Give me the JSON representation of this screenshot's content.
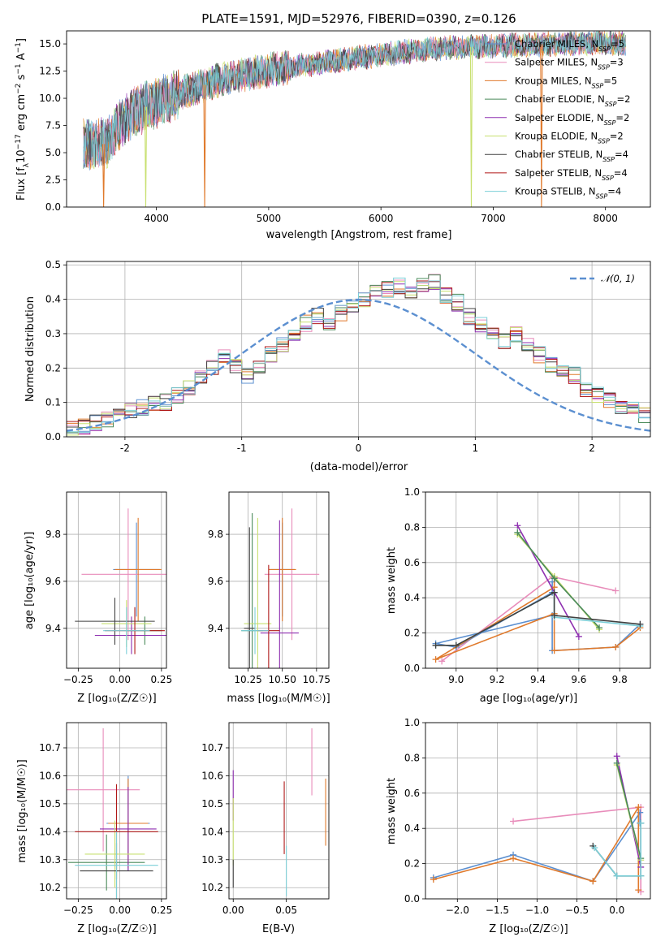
{
  "colors": {
    "Chabrier MILES": "#5b8fd0",
    "Salpeter MILES": "#e88cba",
    "Kroupa MILES": "#e07a2c",
    "Chabrier ELODIE": "#4a8a5a",
    "Salpeter ELODIE": "#8e2fb0",
    "Kroupa ELODIE": "#c8e070",
    "Chabrier STELIB": "#404040",
    "Salpeter STELIB": "#b01818",
    "Kroupa STELIB": "#7ccfd8"
  },
  "chart_data": [
    {
      "id": "spectrum",
      "type": "line",
      "title": "PLATE=1591, MJD=52976, FIBERID=0390, z=0.126",
      "xlabel": "wavelength [Angstrom, rest frame]",
      "ylabel_parts": [
        "Flux [f",
        "λ",
        "10",
        "−17",
        " erg cm",
        "−2",
        " s",
        "−1",
        " A",
        "−1",
        "]"
      ],
      "xlim": [
        3200,
        8400
      ],
      "ylim": [
        0,
        16.2
      ],
      "xticks": [
        4000,
        5000,
        6000,
        7000,
        8000
      ],
      "yticks": [
        0.0,
        2.5,
        5.0,
        7.5,
        10.0,
        12.5,
        15.0
      ],
      "ytick_labels": [
        "0.0",
        "2.5",
        "5.0",
        "7.5",
        "10.0",
        "12.5",
        "15.0"
      ],
      "data_range": [
        3350,
        8180
      ],
      "continuum": [
        [
          3350,
          5.7
        ],
        [
          3550,
          5.8
        ],
        [
          3700,
          8.0
        ],
        [
          3900,
          9.2
        ],
        [
          4100,
          10.0
        ],
        [
          4300,
          10.8
        ],
        [
          4600,
          11.8
        ],
        [
          5000,
          12.6
        ],
        [
          5500,
          13.3
        ],
        [
          6000,
          14.0
        ],
        [
          6500,
          14.6
        ],
        [
          7000,
          14.8
        ],
        [
          7500,
          15.0
        ],
        [
          8000,
          15.1
        ],
        [
          8180,
          15.0
        ]
      ],
      "dropouts": [
        {
          "series": "Kroupa MILES",
          "x": 3530
        },
        {
          "series": "Kroupa ELODIE",
          "x": 3905
        },
        {
          "series": "Kroupa MILES",
          "x": 4430
        },
        {
          "series": "Kroupa ELODIE",
          "x": 6805
        },
        {
          "series": "Kroupa MILES",
          "x": 7430
        }
      ],
      "legend_position": "upper right",
      "legend": [
        {
          "series": "Chabrier MILES",
          "label": "Chabrier MILES, N",
          "sub": "SSP",
          "n": "=5"
        },
        {
          "series": "Salpeter MILES",
          "label": "Salpeter MILES, N",
          "sub": "SSP",
          "n": "=3"
        },
        {
          "series": "Kroupa MILES",
          "label": "Kroupa MILES, N",
          "sub": "SSP",
          "n": "=5"
        },
        {
          "series": "Chabrier ELODIE",
          "label": "Chabrier ELODIE, N",
          "sub": "SSP",
          "n": "=2"
        },
        {
          "series": "Salpeter ELODIE",
          "label": "Salpeter ELODIE, N",
          "sub": "SSP",
          "n": "=2"
        },
        {
          "series": "Kroupa ELODIE",
          "label": "Kroupa ELODIE, N",
          "sub": "SSP",
          "n": "=2"
        },
        {
          "series": "Chabrier STELIB",
          "label": "Chabrier STELIB, N",
          "sub": "SSP",
          "n": "=4"
        },
        {
          "series": "Salpeter STELIB",
          "label": "Salpeter STELIB, N",
          "sub": "SSP",
          "n": "=4"
        },
        {
          "series": "Kroupa STELIB",
          "label": "Kroupa STELIB, N",
          "sub": "SSP",
          "n": "=4"
        }
      ]
    },
    {
      "id": "residuals",
      "type": "bar",
      "xlabel": "(data-model)/error",
      "ylabel": "Normed distribution",
      "xlim": [
        -2.5,
        2.5
      ],
      "ylim": [
        0,
        0.51
      ],
      "xticks": [
        -2,
        -1,
        0,
        1,
        2
      ],
      "yticks": [
        0.0,
        0.1,
        0.2,
        0.3,
        0.4,
        0.5
      ],
      "ytick_labels": [
        "0.0",
        "0.1",
        "0.2",
        "0.3",
        "0.4",
        "0.5"
      ],
      "grid": true,
      "bin_width": 0.1,
      "bin_start": -2.5,
      "base_hist": [
        0.02,
        0.03,
        0.04,
        0.05,
        0.06,
        0.075,
        0.085,
        0.095,
        0.1,
        0.12,
        0.14,
        0.17,
        0.2,
        0.23,
        0.21,
        0.18,
        0.2,
        0.24,
        0.27,
        0.3,
        0.33,
        0.35,
        0.32,
        0.36,
        0.38,
        0.4,
        0.42,
        0.43,
        0.44,
        0.42,
        0.44,
        0.45,
        0.41,
        0.39,
        0.35,
        0.33,
        0.31,
        0.28,
        0.3,
        0.27,
        0.24,
        0.21,
        0.2,
        0.18,
        0.14,
        0.12,
        0.11,
        0.09,
        0.08,
        0.065
      ],
      "normal_label": "𝒩(0, 1)",
      "normal_color": "#5b8fd0",
      "legend_position": "upper right"
    },
    {
      "id": "age-vs-Z",
      "type": "scatter",
      "xlabel": "Z [log₁₀(Z/Z☉)]",
      "ylabel": "age  [log₁₀(age/yr)]",
      "xlim": [
        -0.32,
        0.28
      ],
      "ylim": [
        9.23,
        9.98
      ],
      "xticks": [
        -0.25,
        0.0,
        0.25
      ],
      "xtick_labels": [
        "−0.25",
        "0.00",
        "0.25"
      ],
      "yticks": [
        9.4,
        9.6,
        9.8
      ],
      "ytick_labels": [
        "9.4",
        "9.6",
        "9.8"
      ],
      "grid": true,
      "points": [
        {
          "series": "Chabrier MILES",
          "x": 0.1,
          "y": 9.65,
          "xerr": 0.14,
          "yerr": 0.2
        },
        {
          "series": "Salpeter MILES",
          "x": 0.05,
          "y": 9.63,
          "xerr": 0.28,
          "yerr": 0.28
        },
        {
          "series": "Kroupa MILES",
          "x": 0.11,
          "y": 9.65,
          "xerr": 0.14,
          "yerr": 0.22
        },
        {
          "series": "Chabrier ELODIE",
          "x": 0.15,
          "y": 9.39,
          "xerr": 0.1,
          "yerr": 0.06
        },
        {
          "series": "Salpeter ELODIE",
          "x": 0.07,
          "y": 9.37,
          "xerr": 0.22,
          "yerr": 0.08
        },
        {
          "series": "Kroupa ELODIE",
          "x": 0.04,
          "y": 9.42,
          "xerr": 0.15,
          "yerr": 0.1
        },
        {
          "series": "Chabrier STELIB",
          "x": -0.03,
          "y": 9.43,
          "xerr": 0.24,
          "yerr": 0.1
        },
        {
          "series": "Salpeter STELIB",
          "x": 0.09,
          "y": 9.39,
          "xerr": 0.18,
          "yerr": 0.1
        },
        {
          "series": "Kroupa STELIB",
          "x": 0.04,
          "y": 9.39,
          "xerr": 0.14,
          "yerr": 0.1
        }
      ]
    },
    {
      "id": "age-vs-mass",
      "type": "scatter",
      "xlabel": "mass [log₁₀(M/M☉)]",
      "ylabel": "",
      "xlim": [
        10.11,
        10.84
      ],
      "ylim": [
        9.23,
        9.98
      ],
      "xticks": [
        10.25,
        10.5,
        10.75
      ],
      "xtick_labels": [
        "10.25",
        "10.50",
        "10.75"
      ],
      "yticks": [
        9.4,
        9.6,
        9.8
      ],
      "ytick_labels": [
        "9.4",
        "9.6",
        "9.8"
      ],
      "grid": true,
      "points": [
        {
          "series": "Chabrier MILES",
          "x": 10.5,
          "y": 9.65,
          "xerr": 0.09,
          "yerr": 0.2
        },
        {
          "series": "Salpeter MILES",
          "x": 10.57,
          "y": 9.63,
          "xerr": 0.2,
          "yerr": 0.28
        },
        {
          "series": "Kroupa MILES",
          "x": 10.5,
          "y": 9.65,
          "xerr": 0.1,
          "yerr": 0.22
        },
        {
          "series": "Chabrier ELODIE",
          "x": 10.28,
          "y": 9.39,
          "xerr": 0.08,
          "yerr": 0.5
        },
        {
          "series": "Salpeter ELODIE",
          "x": 10.48,
          "y": 9.38,
          "xerr": 0.14,
          "yerr": 0.48
        },
        {
          "series": "Kroupa ELODIE",
          "x": 10.32,
          "y": 9.42,
          "xerr": 0.1,
          "yerr": 0.45
        },
        {
          "series": "Chabrier STELIB",
          "x": 10.26,
          "y": 9.4,
          "xerr": 0.04,
          "yerr": 0.43
        },
        {
          "series": "Salpeter STELIB",
          "x": 10.4,
          "y": 9.39,
          "xerr": 0.08,
          "yerr": 0.28
        },
        {
          "series": "Kroupa STELIB",
          "x": 10.3,
          "y": 9.39,
          "xerr": 0.1,
          "yerr": 0.1
        }
      ]
    },
    {
      "id": "massweight-vs-age",
      "type": "line",
      "xlabel": "age  [log₁₀(age/yr)]",
      "ylabel": "mass weight",
      "xlim": [
        8.85,
        9.95
      ],
      "ylim": [
        0,
        1.0
      ],
      "xticks": [
        9.0,
        9.2,
        9.4,
        9.6,
        9.8
      ],
      "xtick_labels": [
        "9.0",
        "9.2",
        "9.4",
        "9.6",
        "9.8"
      ],
      "yticks": [
        0.0,
        0.2,
        0.4,
        0.6,
        0.8,
        1.0
      ],
      "ytick_labels": [
        "0.0",
        "0.2",
        "0.4",
        "0.6",
        "0.8",
        "1.0"
      ],
      "grid": true,
      "series": [
        {
          "name": "Salpeter MILES",
          "x": [
            9.78,
            9.47,
            8.93
          ],
          "y": [
            0.44,
            0.52,
            0.04
          ]
        },
        {
          "name": "Chabrier MILES",
          "x": [
            9.47,
            9.47,
            9.0,
            8.9,
            9.47,
            9.47,
            9.78,
            9.9
          ],
          "y": [
            0.49,
            0.43,
            0.12,
            0.14,
            0.3,
            0.1,
            0.12,
            0.25
          ]
        },
        {
          "name": "Kroupa MILES",
          "x": [
            9.48,
            9.48,
            8.9,
            9.48,
            9.48,
            9.78,
            9.9
          ],
          "y": [
            0.52,
            0.46,
            0.05,
            0.31,
            0.1,
            0.12,
            0.23
          ]
        },
        {
          "name": "Salpeter ELODIE",
          "x": [
            9.3,
            9.6
          ],
          "y": [
            0.81,
            0.18
          ]
        },
        {
          "name": "Kroupa ELODIE",
          "x": [
            9.3,
            9.48,
            9.7
          ],
          "y": [
            0.76,
            0.52,
            0.22
          ]
        },
        {
          "name": "Chabrier ELODIE",
          "x": [
            9.3,
            9.48,
            9.7
          ],
          "y": [
            0.77,
            0.51,
            0.23
          ]
        },
        {
          "name": "Kroupa STELIB",
          "x": [
            9.9,
            9.48,
            9.48,
            9.0,
            8.9
          ],
          "y": [
            0.24,
            0.29,
            0.43,
            0.13,
            0.13
          ]
        },
        {
          "name": "Chabrier STELIB",
          "x": [
            9.9,
            9.48,
            9.48,
            9.0,
            8.9
          ],
          "y": [
            0.25,
            0.3,
            0.43,
            0.13,
            0.13
          ]
        }
      ]
    },
    {
      "id": "mass-vs-Z",
      "type": "scatter",
      "xlabel": "Z [log₁₀(Z/Z☉)]",
      "ylabel": "mass [log₁₀(M/M☉)]",
      "xlim": [
        -0.32,
        0.28
      ],
      "ylim": [
        10.16,
        10.79
      ],
      "xticks": [
        -0.25,
        0.0,
        0.25
      ],
      "xtick_labels": [
        "−0.25",
        "0.00",
        "0.25"
      ],
      "yticks": [
        10.2,
        10.3,
        10.4,
        10.5,
        10.6,
        10.7
      ],
      "ytick_labels": [
        "10.2",
        "10.3",
        "10.4",
        "10.5",
        "10.6",
        "10.7"
      ],
      "grid": true,
      "points": [
        {
          "series": "Chabrier MILES",
          "x": 0.05,
          "y": 10.43,
          "xerr": 0.13,
          "yerr": 0.17
        },
        {
          "series": "Salpeter MILES",
          "x": -0.1,
          "y": 10.55,
          "xerr": 0.22,
          "yerr": 0.22
        },
        {
          "series": "Kroupa MILES",
          "x": 0.05,
          "y": 10.43,
          "xerr": 0.12,
          "yerr": 0.16
        },
        {
          "series": "Chabrier ELODIE",
          "x": -0.08,
          "y": 10.29,
          "xerr": 0.23,
          "yerr": 0.1
        },
        {
          "series": "Salpeter ELODIE",
          "x": 0.05,
          "y": 10.41,
          "xerr": 0.17,
          "yerr": 0.15
        },
        {
          "series": "Kroupa ELODIE",
          "x": -0.03,
          "y": 10.32,
          "xerr": 0.18,
          "yerr": 0.12
        },
        {
          "series": "Chabrier STELIB",
          "x": -0.02,
          "y": 10.26,
          "xerr": 0.22,
          "yerr": 0.1
        },
        {
          "series": "Salpeter STELIB",
          "x": -0.02,
          "y": 10.4,
          "xerr": 0.25,
          "yerr": 0.17
        },
        {
          "series": "Kroupa STELIB",
          "x": -0.02,
          "y": 10.28,
          "xerr": 0.25,
          "yerr": 0.12
        }
      ]
    },
    {
      "id": "mass-vs-ebv",
      "type": "scatter",
      "xlabel": "E(B-V)",
      "ylabel": "",
      "xlim": [
        -0.004,
        0.09
      ],
      "ylim": [
        10.16,
        10.79
      ],
      "xticks": [
        0.0,
        0.05
      ],
      "xtick_labels": [
        "0.00",
        "0.05"
      ],
      "yticks": [
        10.2,
        10.3,
        10.4,
        10.5,
        10.6,
        10.7
      ],
      "ytick_labels": [
        "10.2",
        "10.3",
        "10.4",
        "10.5",
        "10.6",
        "10.7"
      ],
      "grid": true,
      "points": [
        {
          "series": "Salpeter MILES",
          "x": 0.074,
          "y": 10.65,
          "yerr": 0.12
        },
        {
          "series": "Kroupa MILES",
          "x": 0.087,
          "y": 10.47,
          "yerr": 0.12
        },
        {
          "series": "Salpeter ELODIE",
          "x": 0.0,
          "y": 10.53,
          "yerr": 0.09
        },
        {
          "series": "Kroupa ELODIE",
          "x": 0.0,
          "y": 10.4,
          "yerr": 0.12
        },
        {
          "series": "Salpeter STELIB",
          "x": 0.048,
          "y": 10.45,
          "yerr": 0.13
        },
        {
          "series": "Kroupa STELIB",
          "x": 0.05,
          "y": 10.26,
          "yerr": 0.09
        },
        {
          "series": "Chabrier STELIB",
          "x": 0.0,
          "y": 10.25,
          "yerr": 0.05
        }
      ]
    },
    {
      "id": "massweight-vs-Z",
      "type": "line",
      "xlabel": "Z [log₁₀(Z/Z☉)]",
      "ylabel": "mass weight",
      "xlim": [
        -2.4,
        0.42
      ],
      "ylim": [
        0,
        1.0
      ],
      "xticks": [
        -2.0,
        -1.5,
        -1.0,
        -0.5,
        0.0
      ],
      "xtick_labels": [
        "−2.0",
        "−1.5",
        "−1.0",
        "−0.5",
        "0.0"
      ],
      "yticks": [
        0.0,
        0.2,
        0.4,
        0.6,
        0.8,
        1.0
      ],
      "ytick_labels": [
        "0.0",
        "0.2",
        "0.4",
        "0.6",
        "0.8",
        "1.0"
      ],
      "grid": true,
      "series": [
        {
          "name": "Salpeter MILES",
          "x": [
            -1.3,
            0.3,
            0.3
          ],
          "y": [
            0.44,
            0.52,
            0.04
          ]
        },
        {
          "name": "Chabrier MILES",
          "x": [
            -2.3,
            -1.3,
            -0.3,
            0.29,
            0.29
          ],
          "y": [
            0.12,
            0.25,
            0.1,
            0.49,
            0.43
          ]
        },
        {
          "name": "Kroupa MILES",
          "x": [
            -2.3,
            -1.3,
            -0.3,
            0.27,
            0.27
          ],
          "y": [
            0.11,
            0.23,
            0.1,
            0.52,
            0.05
          ]
        },
        {
          "name": "Salpeter ELODIE",
          "x": [
            0.0,
            0.3
          ],
          "y": [
            0.81,
            0.18
          ]
        },
        {
          "name": "Kroupa ELODIE",
          "x": [
            0.0,
            0.3
          ],
          "y": [
            0.76,
            0.22
          ]
        },
        {
          "name": "Chabrier ELODIE",
          "x": [
            0.0,
            0.3
          ],
          "y": [
            0.77,
            0.23
          ]
        },
        {
          "name": "Chabrier STELIB",
          "x": [
            -0.3,
            0.0,
            0.3,
            0.3
          ],
          "y": [
            0.3,
            0.13,
            0.13,
            0.43
          ]
        },
        {
          "name": "Kroupa STELIB",
          "x": [
            -0.28,
            0.0,
            0.3,
            0.3
          ],
          "y": [
            0.29,
            0.13,
            0.13,
            0.43
          ]
        }
      ]
    }
  ]
}
